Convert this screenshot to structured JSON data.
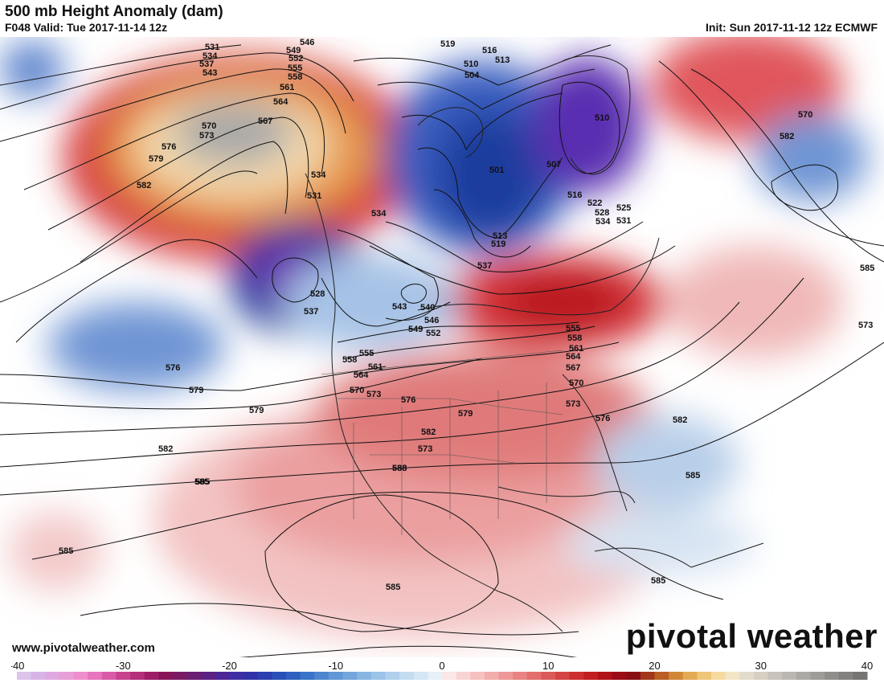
{
  "header": {
    "title": "500 mb Height Anomaly (dam)",
    "valid": "F048 Valid: Tue 2017-11-14 12z",
    "init": "Init: Sun 2017-11-12 12z ECMWF"
  },
  "footer": {
    "website": "www.pivotalweather.com",
    "logo": "pivotal weather"
  },
  "colorbar": {
    "ticks": [
      "-40",
      "-30",
      "-20",
      "-10",
      "0",
      "10",
      "20",
      "30",
      "40"
    ]
  },
  "contour_labels": [
    {
      "text": "546"
    },
    {
      "text": "531"
    },
    {
      "text": "534"
    },
    {
      "text": "537"
    },
    {
      "text": "543"
    },
    {
      "text": "549"
    },
    {
      "text": "552"
    },
    {
      "text": "555"
    },
    {
      "text": "558"
    },
    {
      "text": "561"
    },
    {
      "text": "564"
    },
    {
      "text": "567"
    },
    {
      "text": "570"
    },
    {
      "text": "573"
    },
    {
      "text": "576"
    },
    {
      "text": "579"
    },
    {
      "text": "582"
    },
    {
      "text": "534"
    },
    {
      "text": "531"
    },
    {
      "text": "534"
    },
    {
      "text": "519"
    },
    {
      "text": "516"
    },
    {
      "text": "513"
    },
    {
      "text": "510"
    },
    {
      "text": "504"
    },
    {
      "text": "501"
    },
    {
      "text": "507"
    },
    {
      "text": "510"
    },
    {
      "text": "516"
    },
    {
      "text": "522"
    },
    {
      "text": "528"
    },
    {
      "text": "525"
    },
    {
      "text": "534"
    },
    {
      "text": "531"
    },
    {
      "text": "513"
    },
    {
      "text": "519"
    },
    {
      "text": "537"
    },
    {
      "text": "528"
    },
    {
      "text": "537"
    },
    {
      "text": "543"
    },
    {
      "text": "540"
    },
    {
      "text": "546"
    },
    {
      "text": "549"
    },
    {
      "text": "552"
    },
    {
      "text": "555"
    },
    {
      "text": "558"
    },
    {
      "text": "561"
    },
    {
      "text": "564"
    },
    {
      "text": "570"
    },
    {
      "text": "573"
    },
    {
      "text": "576"
    },
    {
      "text": "579"
    },
    {
      "text": "582"
    },
    {
      "text": "585"
    },
    {
      "text": "588"
    },
    {
      "text": "555"
    },
    {
      "text": "558"
    },
    {
      "text": "561"
    },
    {
      "text": "564"
    },
    {
      "text": "567"
    },
    {
      "text": "570"
    },
    {
      "text": "573"
    },
    {
      "text": "576"
    },
    {
      "text": "579"
    },
    {
      "text": "582"
    },
    {
      "text": "573"
    },
    {
      "text": "570"
    },
    {
      "text": "582"
    },
    {
      "text": "585"
    },
    {
      "text": "573"
    },
    {
      "text": "576"
    },
    {
      "text": "579"
    },
    {
      "text": "582"
    },
    {
      "text": "585"
    },
    {
      "text": "585"
    },
    {
      "text": "588"
    },
    {
      "text": "585"
    },
    {
      "text": "585"
    },
    {
      "text": "585"
    }
  ]
}
